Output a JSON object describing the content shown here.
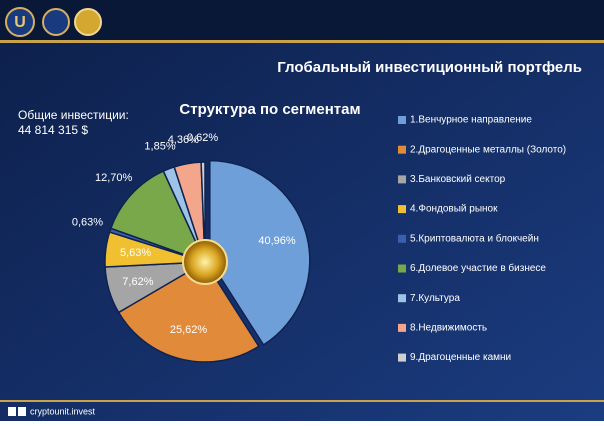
{
  "header": {
    "title": "Глобальный инвестиционный портфель",
    "logo": "U"
  },
  "summary": {
    "label": "Общие инвестиции:",
    "value": "44 814 315 $"
  },
  "footer": {
    "text": "cryptounit.invest"
  },
  "chart_data": {
    "type": "pie",
    "title": "Структура по сегментам",
    "categories": [
      "1.Венчурное направление",
      "2.Драгоценные металлы (Золото)",
      "3.Банковский сектор",
      "4.Фондовый рынок",
      "5.Криптовалюта и блокчейн",
      "6.Долевое участие в бизнесе",
      "7.Культура",
      "8.Недвижимость",
      "9.Драгоценные камни"
    ],
    "values": [
      40.96,
      25.62,
      7.62,
      5.63,
      0.63,
      12.7,
      1.85,
      4.36,
      0.62
    ],
    "value_labels": [
      "40,96%",
      "25,62%",
      "7,62%",
      "5,63%",
      "0,63%",
      "12,70%",
      "1,85%",
      "4,36%",
      "0,62%"
    ],
    "colors": [
      "#6f9fd8",
      "#e08a3a",
      "#a5a5a5",
      "#f0c030",
      "#3b5fae",
      "#78a84a",
      "#9dc3e6",
      "#f4a68c",
      "#cfcfcf"
    ]
  }
}
